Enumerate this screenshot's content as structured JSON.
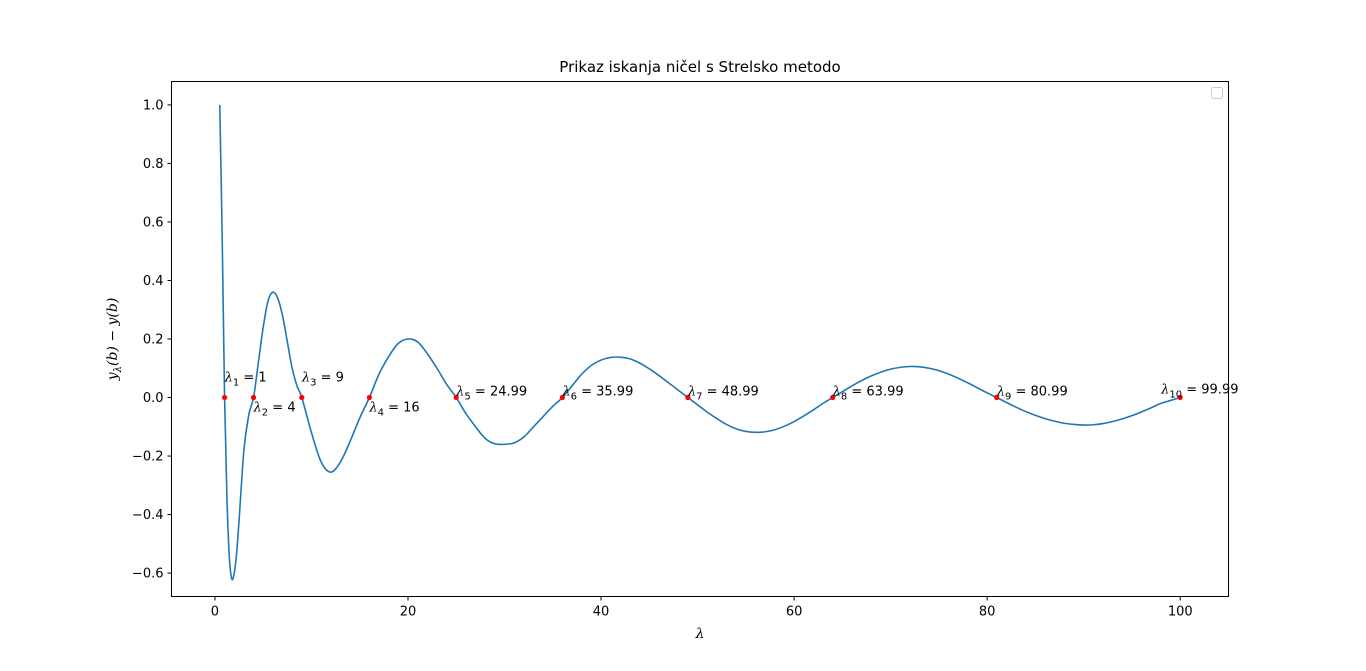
{
  "chart_data": {
    "type": "line",
    "title": "Prikaz iskanja ničel s Strelsko metodo",
    "xlabel": "λ",
    "ylabel": "y_λ(b) − y(b)",
    "ylabel_parts": [
      "y",
      "λ",
      "(b) − y(b)"
    ],
    "xlim": [
      -4.5,
      105
    ],
    "ylim": [
      -0.68,
      1.08
    ],
    "xticks": [
      0,
      20,
      40,
      60,
      80,
      100
    ],
    "yticks": [
      -0.6,
      -0.4,
      -0.2,
      0.0,
      0.2,
      0.4,
      0.6,
      0.8,
      1.0
    ],
    "ytick_labels": [
      "−0.6",
      "−0.4",
      "−0.2",
      "0.0",
      "0.2",
      "0.4",
      "0.6",
      "0.8",
      "1.0"
    ],
    "grid": false,
    "legend": "top-right (empty)",
    "series": [
      {
        "color": "#1f77b4",
        "x": [
          0.5,
          0.75,
          1,
          1.25,
          1.5,
          1.75,
          2,
          2.25,
          2.5,
          3,
          3.5,
          4,
          4.5,
          5,
          5.5,
          6,
          6.5,
          7,
          7.5,
          8,
          8.5,
          9,
          10,
          11,
          12,
          13,
          14,
          15,
          16,
          17,
          18,
          19,
          20,
          21,
          22,
          23,
          24,
          25,
          26,
          27,
          28,
          29,
          30,
          31,
          32,
          33,
          34,
          35,
          36,
          37,
          38,
          39,
          40,
          41,
          42,
          43,
          44,
          45,
          46,
          47,
          48,
          49,
          50,
          51,
          52,
          53,
          54,
          55,
          56,
          57,
          58,
          59,
          60,
          61,
          62,
          63,
          64,
          65,
          66,
          67,
          68,
          69,
          70,
          71,
          72,
          73,
          74,
          75,
          76,
          77,
          78,
          79,
          80,
          81,
          82,
          83,
          84,
          85,
          86,
          87,
          88,
          89,
          90,
          91,
          92,
          93,
          94,
          95,
          96,
          97,
          98,
          99,
          100
        ],
        "y": [
          1.0,
          0.55,
          0.0,
          -0.35,
          -0.55,
          -0.62,
          -0.6,
          -0.53,
          -0.42,
          -0.18,
          -0.06,
          0.0,
          0.12,
          0.24,
          0.33,
          0.36,
          0.34,
          0.28,
          0.19,
          0.1,
          0.04,
          0.0,
          -0.12,
          -0.22,
          -0.255,
          -0.22,
          -0.15,
          -0.07,
          0.0,
          0.08,
          0.14,
          0.185,
          0.2,
          0.19,
          0.15,
          0.1,
          0.045,
          0.0,
          -0.055,
          -0.1,
          -0.14,
          -0.158,
          -0.16,
          -0.155,
          -0.135,
          -0.1,
          -0.065,
          -0.03,
          0.0,
          0.04,
          0.08,
          0.11,
          0.128,
          0.137,
          0.138,
          0.132,
          0.118,
          0.098,
          0.075,
          0.05,
          0.025,
          0.0,
          -0.025,
          -0.05,
          -0.072,
          -0.092,
          -0.107,
          -0.116,
          -0.119,
          -0.117,
          -0.11,
          -0.098,
          -0.082,
          -0.063,
          -0.042,
          -0.02,
          0.0,
          0.02,
          0.04,
          0.058,
          0.074,
          0.087,
          0.097,
          0.103,
          0.106,
          0.105,
          0.1,
          0.092,
          0.08,
          0.066,
          0.05,
          0.033,
          0.016,
          0.0,
          -0.017,
          -0.033,
          -0.048,
          -0.061,
          -0.072,
          -0.081,
          -0.088,
          -0.092,
          -0.094,
          -0.093,
          -0.089,
          -0.082,
          -0.073,
          -0.062,
          -0.049,
          -0.035,
          -0.02,
          -0.01,
          0.0
        ]
      }
    ],
    "roots": [
      {
        "x": 1,
        "y": 0,
        "sub": "1",
        "value": "1",
        "label_pos": "above"
      },
      {
        "x": 4,
        "y": 0,
        "sub": "2",
        "value": "4",
        "label_pos": "below"
      },
      {
        "x": 9,
        "y": 0,
        "sub": "3",
        "value": "9",
        "label_pos": "above"
      },
      {
        "x": 16,
        "y": 0,
        "sub": "4",
        "value": "16",
        "label_pos": "below"
      },
      {
        "x": 24.99,
        "y": 0,
        "sub": "5",
        "value": "24.99",
        "label_pos": "right"
      },
      {
        "x": 35.99,
        "y": 0,
        "sub": "6",
        "value": "35.99",
        "label_pos": "right"
      },
      {
        "x": 48.99,
        "y": 0,
        "sub": "7",
        "value": "48.99",
        "label_pos": "right"
      },
      {
        "x": 63.99,
        "y": 0,
        "sub": "8",
        "value": "63.99",
        "label_pos": "right"
      },
      {
        "x": 80.99,
        "y": 0,
        "sub": "9",
        "value": "80.99",
        "label_pos": "right"
      },
      {
        "x": 99.99,
        "y": 0,
        "sub": "10",
        "value": "99.99",
        "label_pos": "above-left"
      }
    ],
    "marker_color": "#ff0000",
    "line_color": "#1f77b4"
  }
}
